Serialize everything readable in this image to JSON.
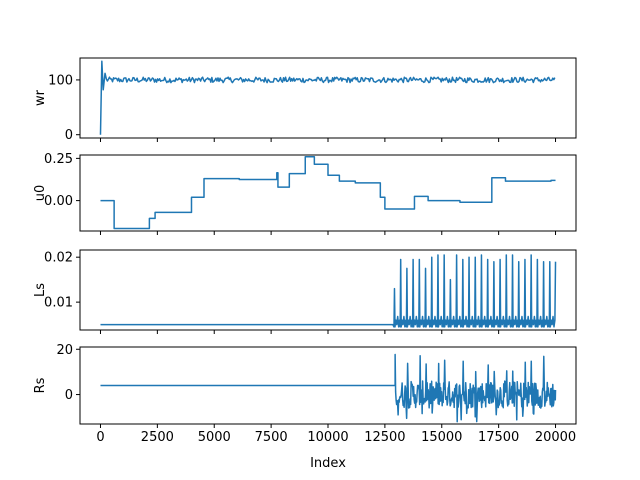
{
  "chart_data": {
    "type": "line",
    "xlabel": "Index",
    "xlim": [
      -900,
      20900
    ],
    "xticks": [
      0,
      2500,
      5000,
      7500,
      10000,
      12500,
      15000,
      17500,
      20000
    ],
    "xtick_labels": [
      "0",
      "2500",
      "5000",
      "7500",
      "10000",
      "12500",
      "15000",
      "17500",
      "20000"
    ],
    "color": "#1f77b4",
    "panels": [
      {
        "ylabel": "wr",
        "ylim": [
          -6,
          140
        ],
        "yticks": [
          0,
          100
        ],
        "ytick_labels": [
          "0",
          "100"
        ],
        "description_kind": "noisy_steady",
        "start_value": 0,
        "peak_value": 134,
        "mean_value": 100,
        "noise_band": [
          95,
          105
        ]
      },
      {
        "ylabel": "u0",
        "ylim": [
          -0.18,
          0.27
        ],
        "yticks": [
          0.0,
          0.25
        ],
        "ytick_labels": [
          "0.00",
          "0.25"
        ],
        "description_kind": "step",
        "steps": [
          [
            0,
            0.0
          ],
          [
            600,
            -0.165
          ],
          [
            2150,
            -0.105
          ],
          [
            2400,
            -0.07
          ],
          [
            4000,
            0.02
          ],
          [
            4550,
            0.13
          ],
          [
            6100,
            0.125
          ],
          [
            7700,
            0.125
          ],
          [
            7750,
            0.165
          ],
          [
            7800,
            0.08
          ],
          [
            8300,
            0.16
          ],
          [
            9000,
            0.26
          ],
          [
            9400,
            0.215
          ],
          [
            10000,
            0.15
          ],
          [
            10500,
            0.115
          ],
          [
            11200,
            0.105
          ],
          [
            12100,
            0.105
          ],
          [
            12300,
            0.02
          ],
          [
            12500,
            -0.05
          ],
          [
            13800,
            0.025
          ],
          [
            14400,
            0.0
          ],
          [
            15800,
            -0.01
          ],
          [
            17200,
            0.135
          ],
          [
            17800,
            0.115
          ],
          [
            19800,
            0.12
          ],
          [
            20000,
            0.12
          ]
        ]
      },
      {
        "ylabel": "Ls",
        "ylim": [
          0.0038,
          0.0216
        ],
        "yticks": [
          0.01,
          0.02
        ],
        "ytick_labels": [
          "0.01",
          "0.02"
        ],
        "description_kind": "baseline_then_spikes",
        "baseline": 0.005,
        "onset_index": 12850,
        "spike_low": 0.0045,
        "spike_mid": 0.006,
        "spike_peaks": [
          0.013,
          0.0195,
          0.0175,
          0.0195,
          0.0195,
          0.0175,
          0.02,
          0.0205,
          0.0205,
          0.015,
          0.0205,
          0.0195,
          0.02,
          0.02,
          0.0205,
          0.0195,
          0.019,
          0.0195,
          0.0205,
          0.0205,
          0.019,
          0.0195,
          0.0205,
          0.0195,
          0.019,
          0.019
        ]
      },
      {
        "ylabel": "Rs",
        "ylim": [
          -13,
          21
        ],
        "yticks": [
          0,
          20
        ],
        "ytick_labels": [
          "0",
          "20"
        ],
        "description_kind": "baseline_then_noise",
        "baseline": 4,
        "onset_index": 12950,
        "noise_range": [
          -12,
          19
        ]
      }
    ]
  }
}
